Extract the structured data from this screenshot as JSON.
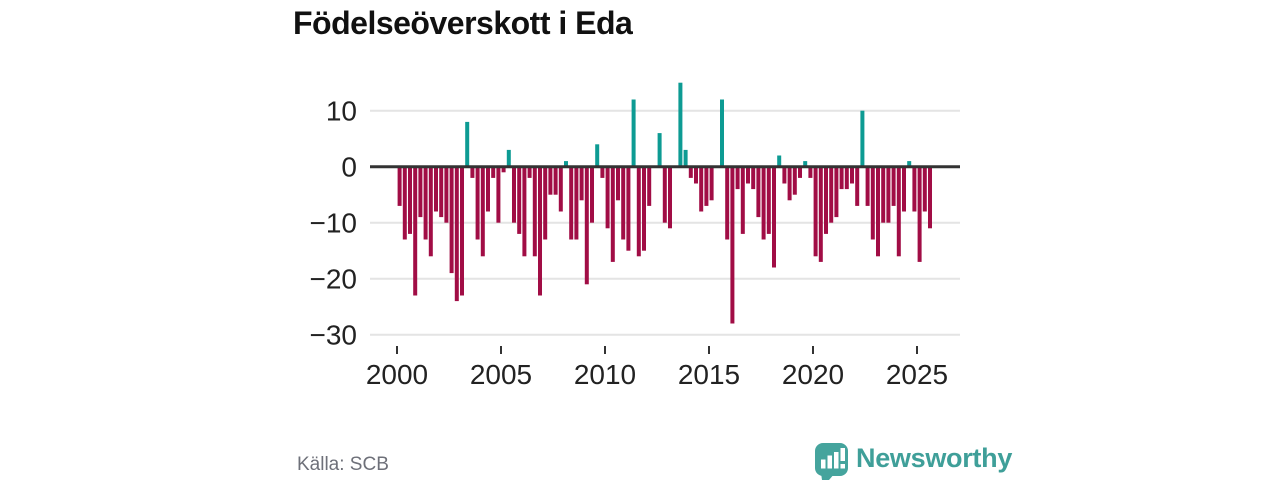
{
  "title": "Födelseöverskott i Eda",
  "source_label": "Källa: SCB",
  "logo": {
    "text": "Newsworthy",
    "icon": "speech-bubble-bar-chart-icon"
  },
  "colors": {
    "positive": "#0d9b93",
    "negative": "#a10d45",
    "zero_line": "#333333",
    "grid_line": "#e4e4e4",
    "axis_text": "#222222",
    "logo_teal": "#45a49d",
    "logo_text_teal": "#3f9f99",
    "source_text": "#6e7079"
  },
  "chart_data": {
    "type": "bar",
    "title": "Födelseöverskott i Eda",
    "xlabel": "",
    "ylabel": "",
    "frequency": "quarterly",
    "grid": true,
    "ylim": [
      -32,
      16
    ],
    "y_tick_values": [
      10,
      0,
      -10,
      -20,
      -30
    ],
    "x_tick_years": [
      2000,
      2005,
      2010,
      2015,
      2020,
      2025
    ],
    "series": [
      {
        "year": 2000,
        "values": [
          -7,
          -13,
          -12,
          -23
        ]
      },
      {
        "year": 2001,
        "values": [
          -9,
          -13,
          -16,
          -8
        ]
      },
      {
        "year": 2002,
        "values": [
          -9,
          -10,
          -19,
          -24
        ]
      },
      {
        "year": 2003,
        "values": [
          -23,
          8,
          -2,
          -13
        ]
      },
      {
        "year": 2004,
        "values": [
          -16,
          -8,
          -2,
          -10
        ]
      },
      {
        "year": 2005,
        "values": [
          -1,
          3,
          -10,
          -12
        ]
      },
      {
        "year": 2006,
        "values": [
          -16,
          -2,
          -16,
          -23
        ]
      },
      {
        "year": 2007,
        "values": [
          -13,
          -5,
          -5,
          -8
        ]
      },
      {
        "year": 2008,
        "values": [
          1,
          -13,
          -13,
          -6
        ]
      },
      {
        "year": 2009,
        "values": [
          -21,
          -10,
          4,
          -2
        ]
      },
      {
        "year": 2010,
        "values": [
          -11,
          -17,
          -6,
          -13
        ]
      },
      {
        "year": 2011,
        "values": [
          -15,
          12,
          -16,
          -15
        ]
      },
      {
        "year": 2012,
        "values": [
          -7,
          0,
          6,
          -10
        ]
      },
      {
        "year": 2013,
        "values": [
          -11,
          0,
          15,
          3
        ]
      },
      {
        "year": 2014,
        "values": [
          -2,
          -3,
          -8,
          -7
        ]
      },
      {
        "year": 2015,
        "values": [
          -6,
          0,
          12,
          -13
        ]
      },
      {
        "year": 2016,
        "values": [
          -28,
          -4,
          -12,
          -3
        ]
      },
      {
        "year": 2017,
        "values": [
          -4,
          -9,
          -13,
          -12
        ]
      },
      {
        "year": 2018,
        "values": [
          -18,
          2,
          -3,
          -6
        ]
      },
      {
        "year": 2019,
        "values": [
          -5,
          -2,
          1,
          -2
        ]
      },
      {
        "year": 2020,
        "values": [
          -16,
          -17,
          -12,
          -10
        ]
      },
      {
        "year": 2021,
        "values": [
          -9,
          -4,
          -4,
          -3
        ]
      },
      {
        "year": 2022,
        "values": [
          -7,
          10,
          -7,
          -13
        ]
      },
      {
        "year": 2023,
        "values": [
          -16,
          -10,
          -10,
          -7
        ]
      },
      {
        "year": 2024,
        "values": [
          -16,
          -8,
          1,
          -8
        ]
      },
      {
        "year": 2025,
        "values": [
          -17,
          -8,
          -11
        ]
      }
    ]
  }
}
